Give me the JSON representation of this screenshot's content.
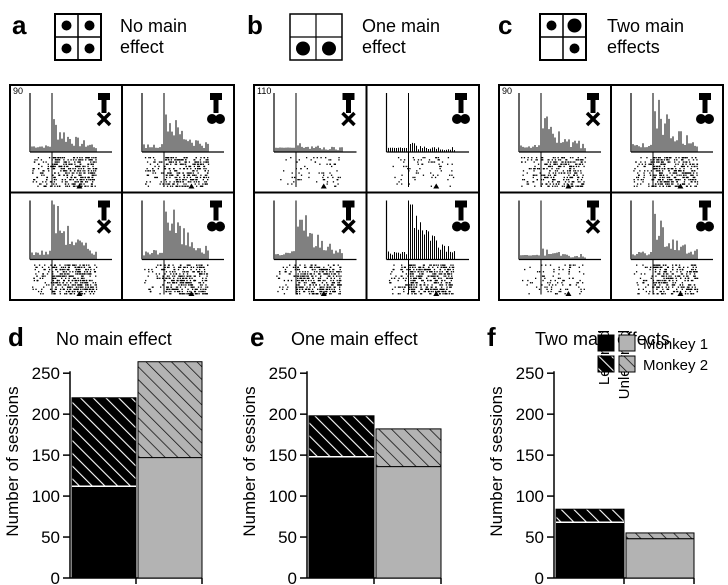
{
  "raster_panels": [
    {
      "letter": "a",
      "title_line1": "No main effect",
      "title_line2": "",
      "scale": "90",
      "dots": [
        1,
        1,
        1,
        1
      ],
      "large": [
        false,
        false,
        false,
        false
      ]
    },
    {
      "letter": "b",
      "title_line1": "One main",
      "title_line2": "effect",
      "scale": "110",
      "dots": [
        0,
        0,
        1,
        1
      ],
      "large": [
        false,
        false,
        true,
        true
      ]
    },
    {
      "letter": "c",
      "title_line1": "Two main",
      "title_line2": "effects",
      "scale": "90",
      "dots": [
        1,
        1,
        0,
        1
      ],
      "large": [
        false,
        true,
        false,
        false
      ]
    }
  ],
  "raster_a_title": [
    "No main",
    "effect"
  ],
  "colors": {
    "learned": "#000000",
    "unlearned": "#b3b3b3",
    "edge": "#000000"
  },
  "legend": {
    "learned_label": "Learned",
    "unlearned_label": "Unlearned",
    "monkey1_label": "Monkey 1",
    "monkey2_label": "Monkey 2"
  },
  "chart_data": [
    {
      "type": "bar",
      "stacked": true,
      "letter": "d",
      "title": "No main effect",
      "ylabel": "Number of sessions",
      "ylim": [
        0,
        260
      ],
      "yticks": [
        0,
        50,
        100,
        150,
        200,
        250
      ],
      "categories": [
        "Learned",
        "Unlearned"
      ],
      "series": [
        {
          "name": "Monkey 1",
          "values": [
            112,
            147
          ]
        },
        {
          "name": "Monkey 2",
          "values": [
            108,
            117
          ]
        }
      ]
    },
    {
      "type": "bar",
      "stacked": true,
      "letter": "e",
      "title": "One main effect",
      "ylabel": "Number of sessions",
      "ylim": [
        0,
        260
      ],
      "yticks": [
        0,
        50,
        100,
        150,
        200,
        250
      ],
      "categories": [
        "Learned",
        "Unlearned"
      ],
      "series": [
        {
          "name": "Monkey 1",
          "values": [
            148,
            136
          ]
        },
        {
          "name": "Monkey 2",
          "values": [
            50,
            46
          ]
        }
      ]
    },
    {
      "type": "bar",
      "stacked": true,
      "letter": "f",
      "title": "Two main effects",
      "ylabel": "Number of sessions",
      "ylim": [
        0,
        260
      ],
      "yticks": [
        0,
        50,
        100,
        150,
        200,
        250
      ],
      "categories": [
        "Learned",
        "Unlearned"
      ],
      "series": [
        {
          "name": "Monkey 1",
          "values": [
            68,
            48
          ]
        },
        {
          "name": "Monkey 2",
          "values": [
            16,
            7
          ]
        }
      ]
    }
  ]
}
